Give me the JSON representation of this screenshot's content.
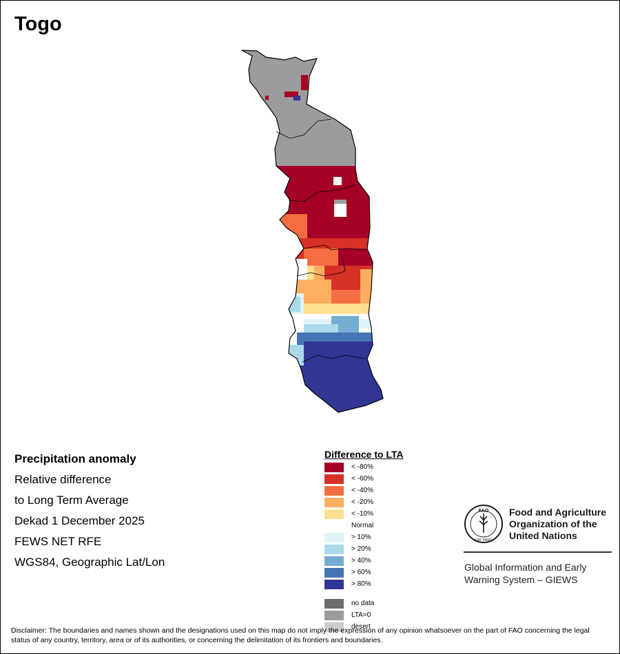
{
  "title": "Togo",
  "info": {
    "line1": "Precipitation anomaly",
    "line2": "Relative difference",
    "line3": "to Long Term Average",
    "line4": "Dekad 1 December 2025",
    "line5": "FEWS NET RFE",
    "line6": "WGS84, Geographic Lat/Lon"
  },
  "legend": {
    "title": "Difference to LTA",
    "classes": [
      {
        "key": "dry80",
        "label": "< -80%",
        "color": "#a50026"
      },
      {
        "key": "dry60",
        "label": "< -60%",
        "color": "#d73027"
      },
      {
        "key": "dry40",
        "label": "< -40%",
        "color": "#f46d43"
      },
      {
        "key": "dry20",
        "label": "< -20%",
        "color": "#fdae61"
      },
      {
        "key": "dry10",
        "label": "< -10%",
        "color": "#fee090"
      },
      {
        "key": "normal",
        "label": "Normal",
        "color": "#ffffff"
      },
      {
        "key": "wet10",
        "label": "> 10%",
        "color": "#e0f3f8"
      },
      {
        "key": "wet20",
        "label": "> 20%",
        "color": "#abd9e9"
      },
      {
        "key": "wet40",
        "label": "> 40%",
        "color": "#74add1"
      },
      {
        "key": "wet60",
        "label": "> 60%",
        "color": "#4575b4"
      },
      {
        "key": "wet80",
        "label": "> 80%",
        "color": "#313695"
      }
    ],
    "extras": [
      {
        "key": "nodata",
        "label": "no data",
        "color": "#6e6e6e"
      },
      {
        "key": "lta0",
        "label": "LTA=0",
        "color": "#9c9c9c"
      },
      {
        "key": "desert",
        "label": "desert",
        "color": "#cccccc"
      }
    ]
  },
  "fao": {
    "org_line1": "Food and Agriculture",
    "org_line2": "Organization of the",
    "org_line3": "United Nations",
    "giews_line1": "Global Information and Early",
    "giews_line2": "Warning System – GIEWS",
    "logo_text": "FIAT PANIS",
    "logo_letters": "FAO"
  },
  "disclaimer": "Disclaimer: The boundaries and names shown and the designations used on this map do not imply the expression of any opinion whatsoever on the part of FAO concerning the legal status of any country, territory, area or of its authorities, or concerning the delimitation of its frontiers and boundaries.",
  "map": {
    "country": "Togo",
    "bands": [
      {
        "zone": "north",
        "class": "lta0"
      },
      {
        "zone": "central-north",
        "class": "dry80"
      },
      {
        "zone": "central",
        "class": "dry60"
      },
      {
        "zone": "central-south",
        "class": "dry20"
      },
      {
        "zone": "south-central",
        "class": "wet20"
      },
      {
        "zone": "south",
        "class": "wet80"
      }
    ]
  }
}
